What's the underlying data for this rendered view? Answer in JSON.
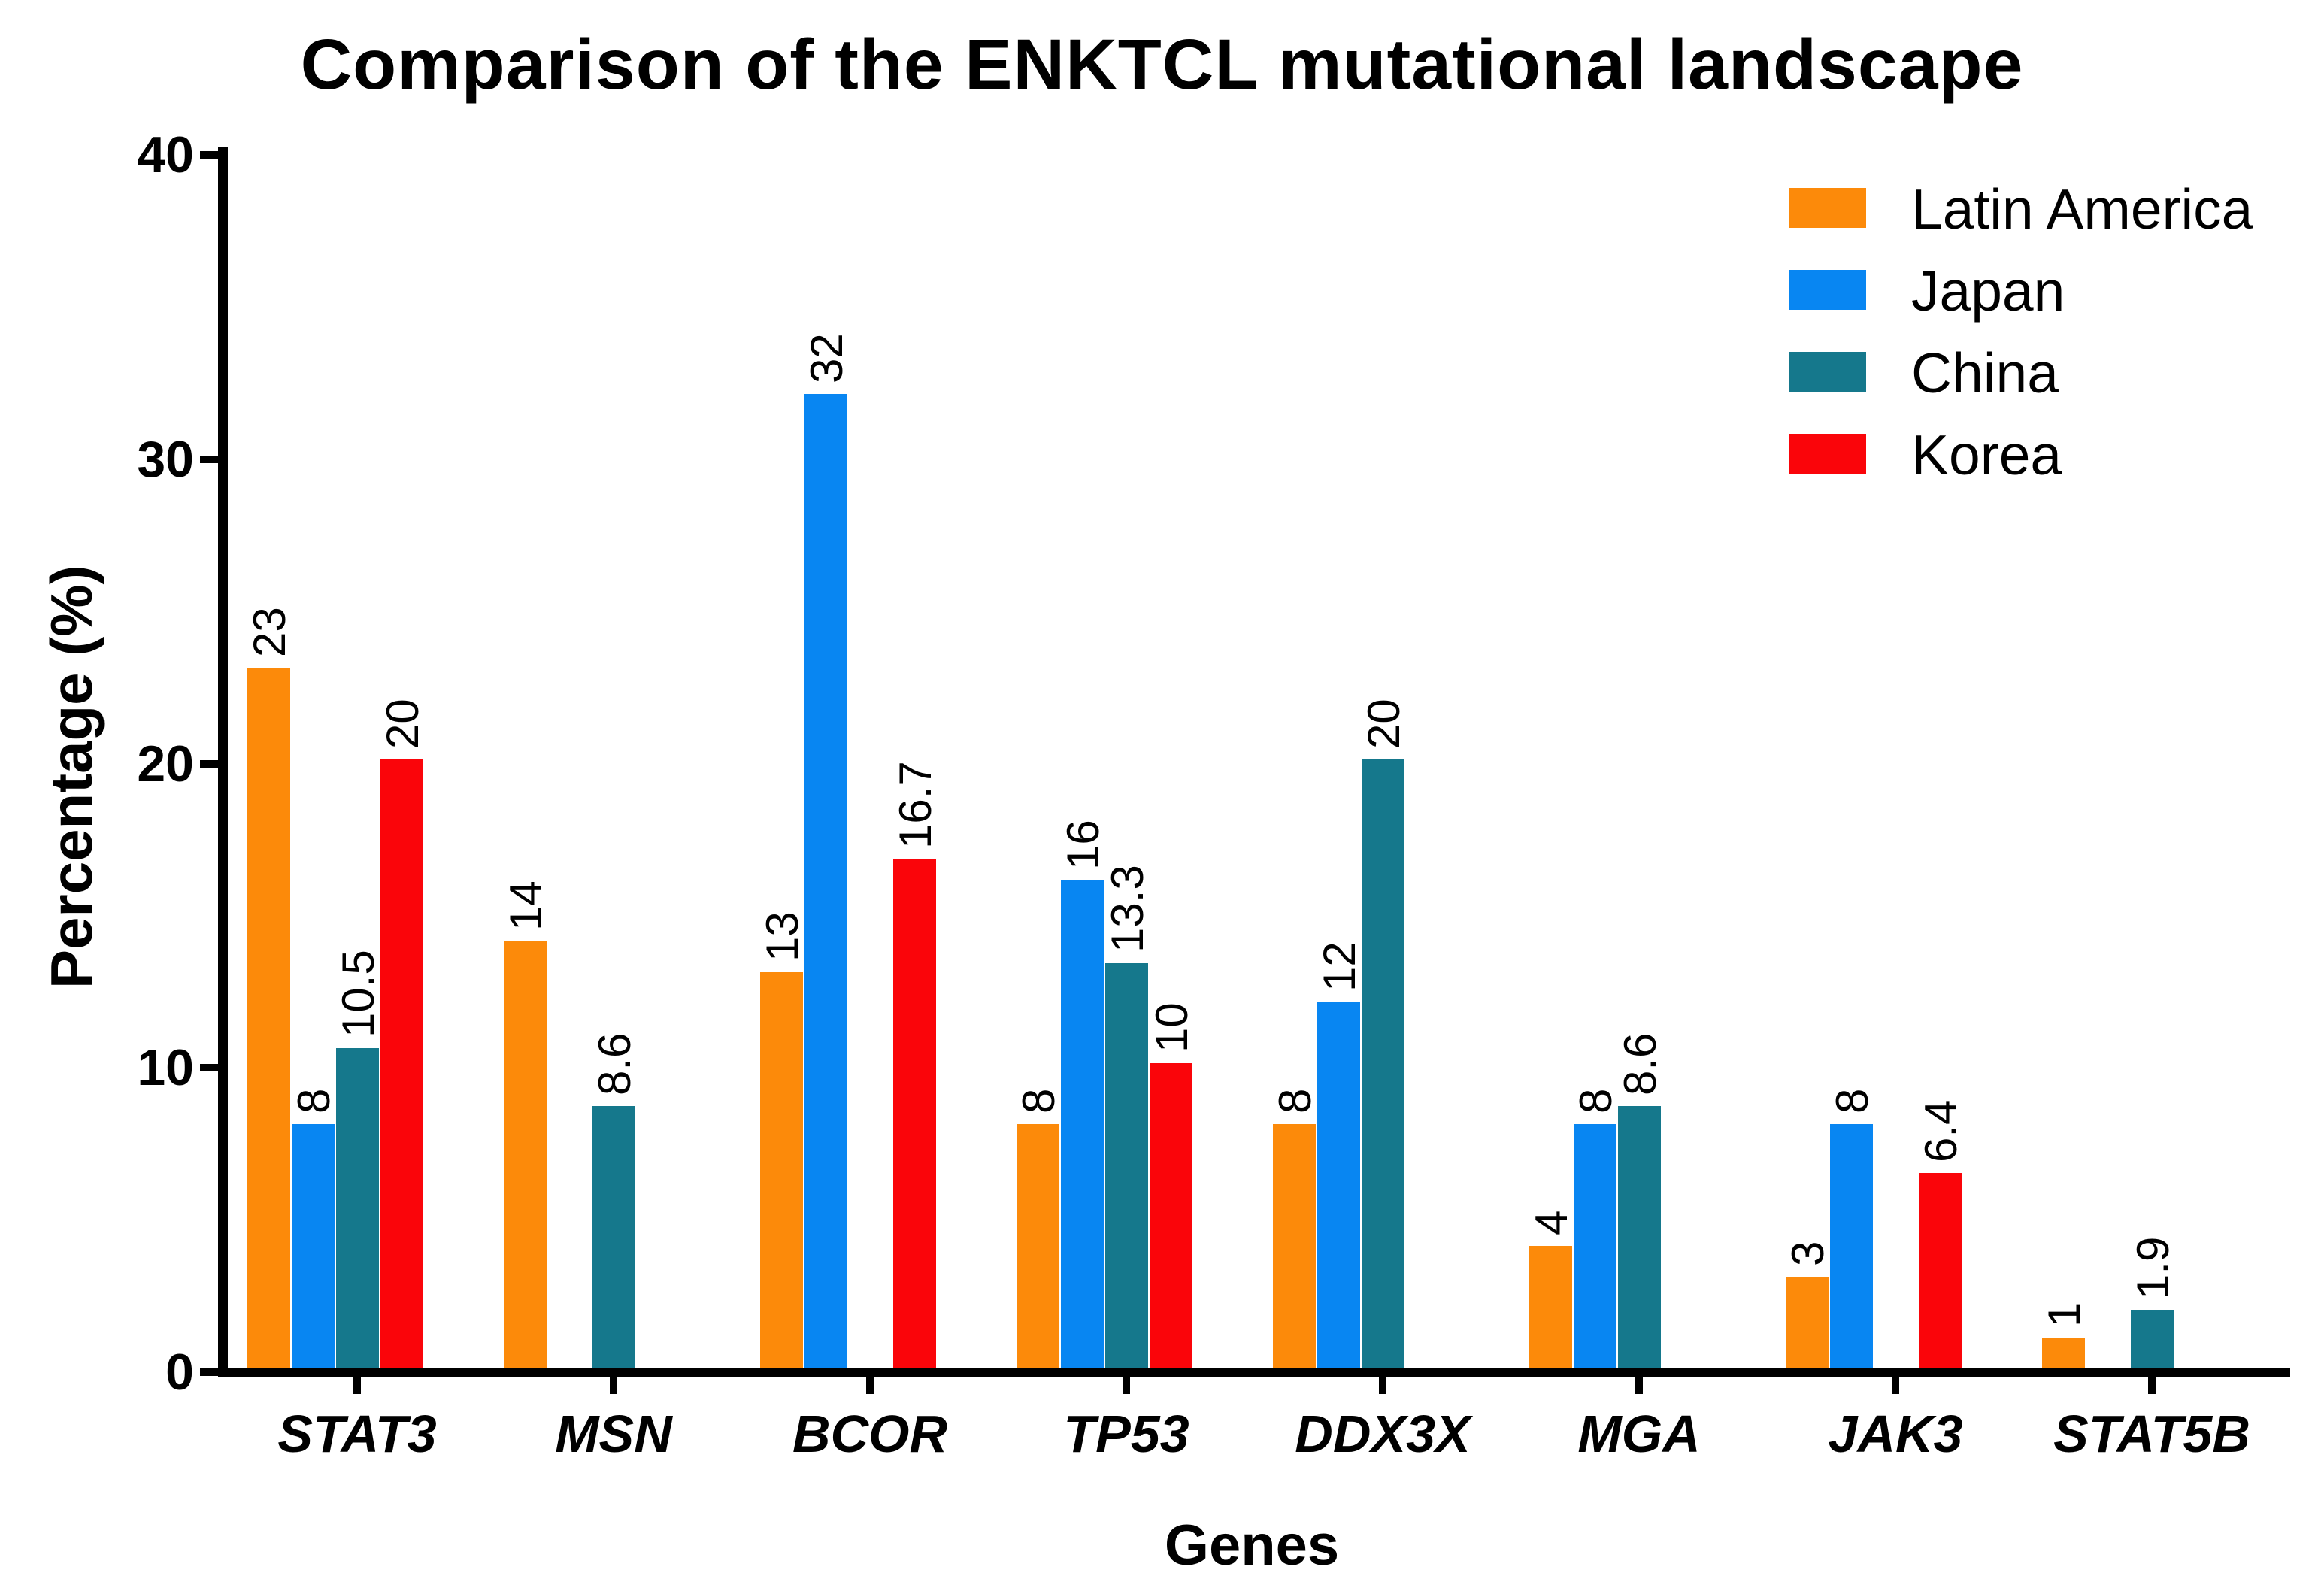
{
  "chart_data": {
    "type": "bar",
    "title": "Comparison of the ENKTCL mutational landscape",
    "xlabel": "Genes",
    "ylabel": "Percentage (%)",
    "ylim": [
      0,
      40
    ],
    "yticks": [
      0,
      10,
      20,
      30,
      40
    ],
    "grid": false,
    "legend_position": "top-right",
    "categories": [
      "STAT3",
      "MSN",
      "BCOR",
      "TP53",
      "DDX3X",
      "MGA",
      "JAK3",
      "STAT5B"
    ],
    "series": [
      {
        "name": "Latin America",
        "color": "#FC8A0A",
        "values": [
          23,
          14,
          13,
          8,
          8,
          4,
          3,
          1
        ]
      },
      {
        "name": "Japan",
        "color": "#0886F2",
        "values": [
          8,
          null,
          32,
          16,
          12,
          8,
          8,
          null
        ]
      },
      {
        "name": "China",
        "color": "#15788C",
        "values": [
          10.5,
          8.6,
          null,
          13.3,
          20,
          8.6,
          null,
          1.9
        ]
      },
      {
        "name": "Korea",
        "color": "#FA050A",
        "values": [
          20,
          null,
          16.7,
          10,
          null,
          null,
          6.4,
          null
        ]
      }
    ]
  }
}
